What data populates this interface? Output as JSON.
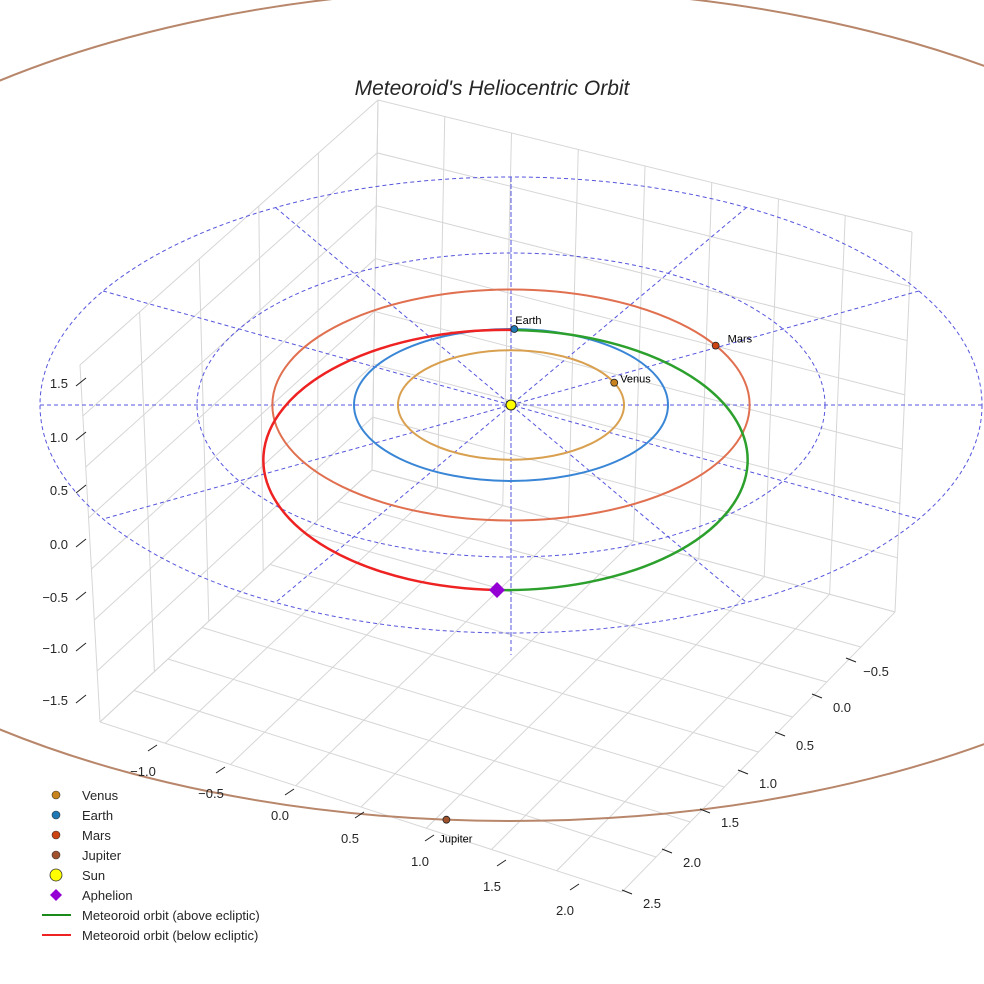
{
  "chart_data": {
    "type": "line",
    "projection": "3d",
    "title": "Meteoroid's Heliocentric Orbit",
    "x_ticks": [
      "−1.0",
      "−0.5",
      "0.0",
      "0.5",
      "1.0",
      "1.5",
      "2.0"
    ],
    "y_ticks": [
      "−0.5",
      "0.0",
      "0.5",
      "1.0",
      "1.5",
      "2.0",
      "2.5"
    ],
    "z_ticks": [
      "1.5",
      "1.0",
      "0.5",
      "0.0",
      "−0.5",
      "−1.0",
      "−1.5"
    ],
    "reference_rings_au": [
      1,
      2,
      3
    ],
    "planets": [
      {
        "name": "Venus",
        "orbit_au": 0.72,
        "color": "#c9831e",
        "orbit_color": "#d9a050"
      },
      {
        "name": "Earth",
        "orbit_au": 1.0,
        "color": "#1f77b4",
        "orbit_color": "#3a86d6"
      },
      {
        "name": "Mars",
        "orbit_au": 1.52,
        "color": "#cc4411",
        "orbit_color": "#e07050"
      },
      {
        "name": "Jupiter",
        "orbit_au": 5.2,
        "color": "#a0522d",
        "orbit_color": "#b8866a"
      }
    ],
    "sun": {
      "name": "Sun",
      "color": "#ffff00"
    },
    "meteoroid": {
      "above_label": "Meteoroid orbit (above ecliptic)",
      "below_label": "Meteoroid orbit (below ecliptic)",
      "above_color": "#2ca02c",
      "below_color": "#ee2222",
      "perihelion_au": 1.0,
      "aphelion_label": "Aphelion",
      "aphelion_color": "#9400d3"
    },
    "legend": {
      "placement": "bottom-left",
      "entries": [
        "Venus",
        "Earth",
        "Mars",
        "Jupiter",
        "Sun",
        "Aphelion",
        "Meteoroid orbit (above ecliptic)",
        "Meteoroid orbit (below ecliptic)"
      ]
    }
  }
}
